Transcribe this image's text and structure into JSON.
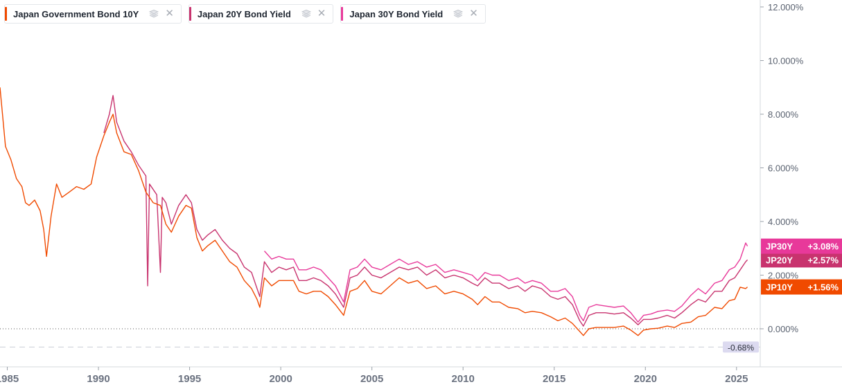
{
  "legend": [
    {
      "label": "Japan Government Bond 10Y",
      "color": "#f04a00",
      "stack_icon": "stack-icon",
      "close_icon": "close-icon"
    },
    {
      "label": "Japan 20Y Bond Yield",
      "color": "#c8336e",
      "stack_icon": "stack-icon",
      "close_icon": "close-icon"
    },
    {
      "label": "Japan 30Y Bond Yield",
      "color": "#e8399a",
      "stack_icon": "stack-icon",
      "close_icon": "close-icon"
    }
  ],
  "chart_data": {
    "type": "line",
    "xlim": [
      1984.6,
      2026.3
    ],
    "ylim": [
      -1.3,
      12.0
    ],
    "x_ticks": [
      {
        "value": 1985,
        "label": "1985"
      },
      {
        "value": 1990,
        "label": "1990"
      },
      {
        "value": 1995,
        "label": "1995"
      },
      {
        "value": 2000,
        "label": "2000"
      },
      {
        "value": 2005,
        "label": "2005"
      },
      {
        "value": 2010,
        "label": "2010"
      },
      {
        "value": 2015,
        "label": "2015"
      },
      {
        "value": 2020,
        "label": "2020"
      },
      {
        "value": 2025,
        "label": "2025"
      }
    ],
    "y_ticks": [
      {
        "value": 12,
        "label": "12.000%"
      },
      {
        "value": 10,
        "label": "10.000%"
      },
      {
        "value": 8,
        "label": "8.000%"
      },
      {
        "value": 6,
        "label": "6.000%"
      },
      {
        "value": 4,
        "label": "4.000%"
      },
      {
        "value": 2,
        "label": "2.000%"
      },
      {
        "value": 0,
        "label": "0.000%"
      }
    ],
    "reference_lines": [
      {
        "value": 0,
        "style": "dotted",
        "color": "#555555"
      },
      {
        "value": -0.68,
        "style": "dashed",
        "color": "#c9cdd6",
        "label": "-0.68%"
      }
    ],
    "series": [
      {
        "name": "Japan Government Bond 10Y",
        "ticker": "JP10Y",
        "last_label": "+1.56%",
        "color": "#f04a00",
        "points": [
          [
            1984.6,
            9.0
          ],
          [
            1984.9,
            6.8
          ],
          [
            1985.2,
            6.3
          ],
          [
            1985.5,
            5.6
          ],
          [
            1985.8,
            5.3
          ],
          [
            1986.0,
            4.7
          ],
          [
            1986.2,
            4.6
          ],
          [
            1986.5,
            4.8
          ],
          [
            1986.8,
            4.4
          ],
          [
            1987.0,
            3.7
          ],
          [
            1987.15,
            2.7
          ],
          [
            1987.4,
            4.2
          ],
          [
            1987.7,
            5.4
          ],
          [
            1988.0,
            4.9
          ],
          [
            1988.4,
            5.1
          ],
          [
            1988.8,
            5.3
          ],
          [
            1989.2,
            5.2
          ],
          [
            1989.6,
            5.4
          ],
          [
            1989.9,
            6.4
          ],
          [
            1990.3,
            7.2
          ],
          [
            1990.6,
            7.7
          ],
          [
            1990.8,
            8.0
          ],
          [
            1991.0,
            7.3
          ],
          [
            1991.4,
            6.6
          ],
          [
            1991.8,
            6.5
          ],
          [
            1992.2,
            5.9
          ],
          [
            1992.6,
            5.1
          ],
          [
            1993.0,
            4.7
          ],
          [
            1993.4,
            4.6
          ],
          [
            1993.7,
            3.9
          ],
          [
            1994.0,
            3.6
          ],
          [
            1994.4,
            4.2
          ],
          [
            1994.8,
            4.6
          ],
          [
            1995.1,
            4.5
          ],
          [
            1995.4,
            3.4
          ],
          [
            1995.7,
            2.9
          ],
          [
            1996.0,
            3.1
          ],
          [
            1996.4,
            3.3
          ],
          [
            1996.8,
            2.9
          ],
          [
            1997.2,
            2.5
          ],
          [
            1997.6,
            2.3
          ],
          [
            1998.0,
            1.8
          ],
          [
            1998.4,
            1.5
          ],
          [
            1998.7,
            1.1
          ],
          [
            1998.85,
            0.8
          ],
          [
            1999.1,
            1.9
          ],
          [
            1999.5,
            1.6
          ],
          [
            1999.9,
            1.8
          ],
          [
            2000.3,
            1.8
          ],
          [
            2000.7,
            1.8
          ],
          [
            2001.0,
            1.4
          ],
          [
            2001.4,
            1.3
          ],
          [
            2001.8,
            1.4
          ],
          [
            2002.2,
            1.4
          ],
          [
            2002.6,
            1.2
          ],
          [
            2003.0,
            0.9
          ],
          [
            2003.45,
            0.5
          ],
          [
            2003.8,
            1.4
          ],
          [
            2004.2,
            1.5
          ],
          [
            2004.6,
            1.8
          ],
          [
            2005.0,
            1.4
          ],
          [
            2005.5,
            1.3
          ],
          [
            2006.0,
            1.6
          ],
          [
            2006.5,
            1.9
          ],
          [
            2007.0,
            1.7
          ],
          [
            2007.5,
            1.8
          ],
          [
            2008.0,
            1.5
          ],
          [
            2008.5,
            1.6
          ],
          [
            2009.0,
            1.3
          ],
          [
            2009.5,
            1.4
          ],
          [
            2010.0,
            1.3
          ],
          [
            2010.5,
            1.1
          ],
          [
            2010.8,
            0.9
          ],
          [
            2011.2,
            1.2
          ],
          [
            2011.6,
            1.0
          ],
          [
            2012.0,
            1.0
          ],
          [
            2012.5,
            0.8
          ],
          [
            2013.0,
            0.75
          ],
          [
            2013.4,
            0.6
          ],
          [
            2013.8,
            0.65
          ],
          [
            2014.3,
            0.6
          ],
          [
            2014.8,
            0.45
          ],
          [
            2015.2,
            0.3
          ],
          [
            2015.6,
            0.4
          ],
          [
            2016.0,
            0.2
          ],
          [
            2016.4,
            -0.1
          ],
          [
            2016.6,
            -0.25
          ],
          [
            2016.9,
            0.0
          ],
          [
            2017.3,
            0.05
          ],
          [
            2017.8,
            0.05
          ],
          [
            2018.3,
            0.05
          ],
          [
            2018.8,
            0.1
          ],
          [
            2019.2,
            -0.05
          ],
          [
            2019.6,
            -0.25
          ],
          [
            2019.9,
            -0.05
          ],
          [
            2020.3,
            0.0
          ],
          [
            2020.7,
            0.02
          ],
          [
            2021.2,
            0.1
          ],
          [
            2021.6,
            0.05
          ],
          [
            2022.0,
            0.2
          ],
          [
            2022.5,
            0.25
          ],
          [
            2022.9,
            0.45
          ],
          [
            2023.3,
            0.5
          ],
          [
            2023.8,
            0.8
          ],
          [
            2024.2,
            0.75
          ],
          [
            2024.6,
            1.05
          ],
          [
            2024.9,
            1.1
          ],
          [
            2025.2,
            1.55
          ],
          [
            2025.5,
            1.5
          ],
          [
            2025.6,
            1.56
          ]
        ]
      },
      {
        "name": "Japan 20Y Bond Yield",
        "ticker": "JP20Y",
        "last_label": "+2.57%",
        "color": "#c8336e",
        "points": [
          [
            1990.3,
            7.3
          ],
          [
            1990.6,
            8.0
          ],
          [
            1990.8,
            8.7
          ],
          [
            1991.0,
            7.7
          ],
          [
            1991.4,
            7.0
          ],
          [
            1991.8,
            6.6
          ],
          [
            1992.2,
            6.1
          ],
          [
            1992.6,
            5.7
          ],
          [
            1992.7,
            1.6
          ],
          [
            1992.8,
            5.4
          ],
          [
            1993.2,
            5.0
          ],
          [
            1993.4,
            2.1
          ],
          [
            1993.5,
            4.9
          ],
          [
            1993.7,
            4.7
          ],
          [
            1994.0,
            3.9
          ],
          [
            1994.4,
            4.6
          ],
          [
            1994.8,
            5.0
          ],
          [
            1995.1,
            4.7
          ],
          [
            1995.4,
            3.7
          ],
          [
            1995.7,
            3.3
          ],
          [
            1996.0,
            3.5
          ],
          [
            1996.4,
            3.7
          ],
          [
            1996.8,
            3.3
          ],
          [
            1997.2,
            3.0
          ],
          [
            1997.6,
            2.8
          ],
          [
            1998.0,
            2.3
          ],
          [
            1998.4,
            2.1
          ],
          [
            1998.7,
            1.5
          ],
          [
            1998.85,
            1.2
          ],
          [
            1999.1,
            2.5
          ],
          [
            1999.5,
            2.1
          ],
          [
            1999.9,
            2.3
          ],
          [
            2000.3,
            2.2
          ],
          [
            2000.7,
            2.3
          ],
          [
            2001.0,
            1.8
          ],
          [
            2001.4,
            1.8
          ],
          [
            2001.8,
            1.9
          ],
          [
            2002.2,
            1.8
          ],
          [
            2002.6,
            1.6
          ],
          [
            2003.0,
            1.3
          ],
          [
            2003.45,
            0.8
          ],
          [
            2003.8,
            1.9
          ],
          [
            2004.2,
            2.0
          ],
          [
            2004.6,
            2.3
          ],
          [
            2005.0,
            2.0
          ],
          [
            2005.5,
            1.9
          ],
          [
            2006.0,
            2.1
          ],
          [
            2006.5,
            2.3
          ],
          [
            2007.0,
            2.2
          ],
          [
            2007.5,
            2.3
          ],
          [
            2008.0,
            2.0
          ],
          [
            2008.5,
            2.2
          ],
          [
            2009.0,
            1.9
          ],
          [
            2009.5,
            2.0
          ],
          [
            2010.0,
            1.9
          ],
          [
            2010.5,
            1.7
          ],
          [
            2010.8,
            1.6
          ],
          [
            2011.2,
            1.9
          ],
          [
            2011.6,
            1.7
          ],
          [
            2012.0,
            1.7
          ],
          [
            2012.5,
            1.5
          ],
          [
            2013.0,
            1.6
          ],
          [
            2013.4,
            1.4
          ],
          [
            2013.8,
            1.6
          ],
          [
            2014.3,
            1.5
          ],
          [
            2014.8,
            1.2
          ],
          [
            2015.2,
            1.1
          ],
          [
            2015.6,
            1.2
          ],
          [
            2016.0,
            0.9
          ],
          [
            2016.4,
            0.3
          ],
          [
            2016.6,
            0.1
          ],
          [
            2016.9,
            0.5
          ],
          [
            2017.3,
            0.6
          ],
          [
            2017.8,
            0.6
          ],
          [
            2018.3,
            0.55
          ],
          [
            2018.8,
            0.6
          ],
          [
            2019.2,
            0.4
          ],
          [
            2019.6,
            0.15
          ],
          [
            2019.9,
            0.35
          ],
          [
            2020.3,
            0.35
          ],
          [
            2020.7,
            0.4
          ],
          [
            2021.2,
            0.5
          ],
          [
            2021.6,
            0.4
          ],
          [
            2022.0,
            0.6
          ],
          [
            2022.5,
            0.9
          ],
          [
            2022.9,
            1.1
          ],
          [
            2023.3,
            1.0
          ],
          [
            2023.8,
            1.4
          ],
          [
            2024.2,
            1.4
          ],
          [
            2024.6,
            1.8
          ],
          [
            2024.9,
            1.9
          ],
          [
            2025.2,
            2.2
          ],
          [
            2025.5,
            2.5
          ],
          [
            2025.6,
            2.57
          ]
        ]
      },
      {
        "name": "Japan 30Y Bond Yield",
        "ticker": "JP30Y",
        "last_label": "+3.08%",
        "color": "#e8399a",
        "points": [
          [
            1999.1,
            2.9
          ],
          [
            1999.5,
            2.6
          ],
          [
            1999.9,
            2.7
          ],
          [
            2000.3,
            2.6
          ],
          [
            2000.7,
            2.6
          ],
          [
            2001.0,
            2.2
          ],
          [
            2001.4,
            2.2
          ],
          [
            2001.8,
            2.3
          ],
          [
            2002.2,
            2.2
          ],
          [
            2002.6,
            1.9
          ],
          [
            2003.0,
            1.6
          ],
          [
            2003.45,
            1.0
          ],
          [
            2003.8,
            2.2
          ],
          [
            2004.2,
            2.3
          ],
          [
            2004.6,
            2.6
          ],
          [
            2005.0,
            2.3
          ],
          [
            2005.5,
            2.2
          ],
          [
            2006.0,
            2.4
          ],
          [
            2006.5,
            2.6
          ],
          [
            2007.0,
            2.4
          ],
          [
            2007.5,
            2.5
          ],
          [
            2008.0,
            2.3
          ],
          [
            2008.5,
            2.4
          ],
          [
            2009.0,
            2.1
          ],
          [
            2009.5,
            2.2
          ],
          [
            2010.0,
            2.1
          ],
          [
            2010.5,
            2.0
          ],
          [
            2010.8,
            1.8
          ],
          [
            2011.2,
            2.1
          ],
          [
            2011.6,
            2.0
          ],
          [
            2012.0,
            2.0
          ],
          [
            2012.5,
            1.8
          ],
          [
            2013.0,
            1.9
          ],
          [
            2013.4,
            1.7
          ],
          [
            2013.8,
            1.8
          ],
          [
            2014.3,
            1.7
          ],
          [
            2014.8,
            1.4
          ],
          [
            2015.2,
            1.4
          ],
          [
            2015.6,
            1.5
          ],
          [
            2016.0,
            1.2
          ],
          [
            2016.4,
            0.5
          ],
          [
            2016.6,
            0.3
          ],
          [
            2016.9,
            0.8
          ],
          [
            2017.3,
            0.9
          ],
          [
            2017.8,
            0.85
          ],
          [
            2018.3,
            0.8
          ],
          [
            2018.8,
            0.85
          ],
          [
            2019.2,
            0.6
          ],
          [
            2019.6,
            0.25
          ],
          [
            2019.9,
            0.5
          ],
          [
            2020.3,
            0.55
          ],
          [
            2020.7,
            0.65
          ],
          [
            2021.2,
            0.7
          ],
          [
            2021.6,
            0.65
          ],
          [
            2022.0,
            0.85
          ],
          [
            2022.5,
            1.25
          ],
          [
            2022.9,
            1.5
          ],
          [
            2023.3,
            1.3
          ],
          [
            2023.8,
            1.7
          ],
          [
            2024.2,
            1.8
          ],
          [
            2024.6,
            2.2
          ],
          [
            2024.9,
            2.3
          ],
          [
            2025.2,
            2.6
          ],
          [
            2025.5,
            3.2
          ],
          [
            2025.6,
            3.08
          ]
        ]
      }
    ]
  }
}
